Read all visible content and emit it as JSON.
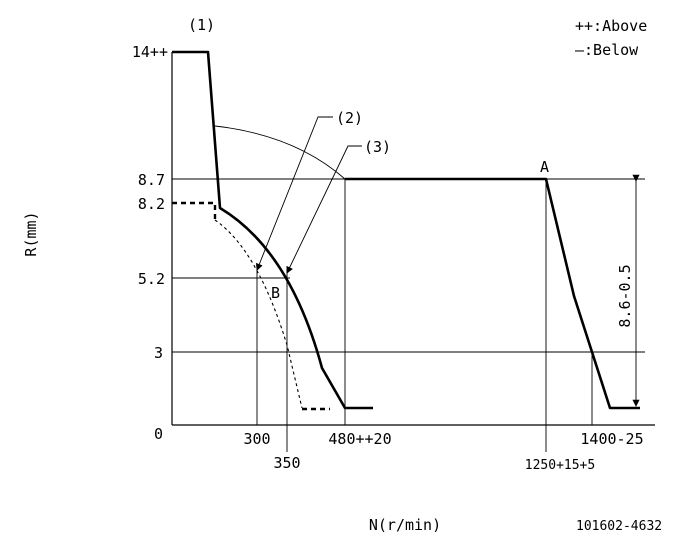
{
  "legend": {
    "above": "++:Above",
    "below": "—:Below"
  },
  "axes": {
    "y_label": "R(mm)",
    "x_label": "N(r/min)"
  },
  "y_ticks": {
    "t14": "14++",
    "t87": "8.7",
    "t82": "8.2",
    "t52": "5.2",
    "t3": "3",
    "t0": "0"
  },
  "x_ticks": {
    "t300": "300",
    "t350": "350",
    "t480": "480++20",
    "t1250": "1250+15+5",
    "t1400": "1400-25"
  },
  "callouts": {
    "c1": "(1)",
    "c2": "(2)",
    "c3": "(3)",
    "pointA": "A",
    "pointB": "B"
  },
  "dimension": "8.6-0.5",
  "code": "101602-4632"
}
